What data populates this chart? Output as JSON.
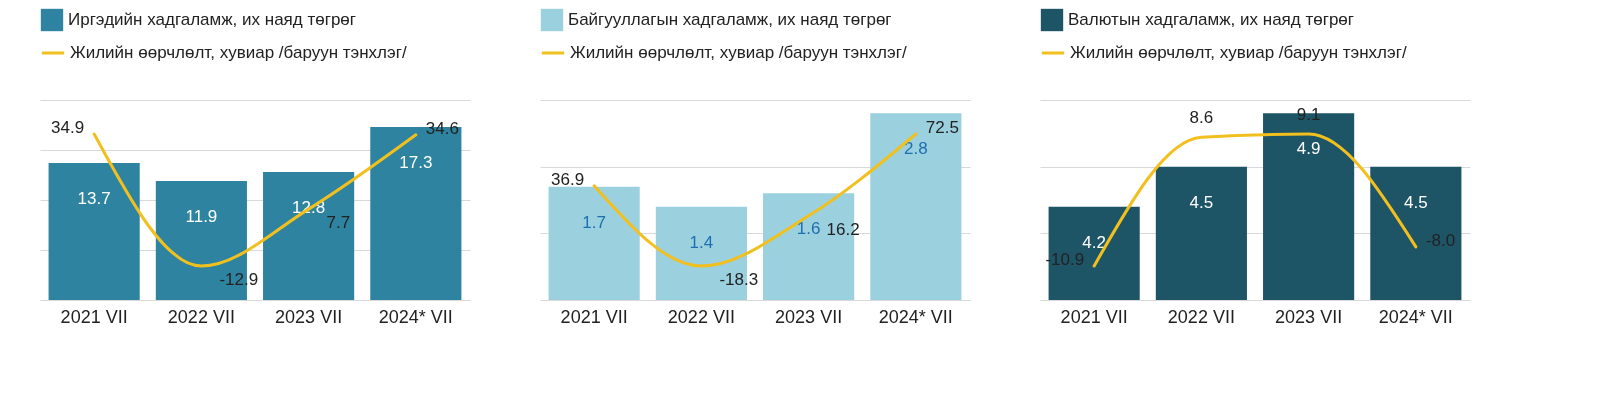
{
  "chart_data": [
    {
      "type": "bar",
      "categories": [
        "2021 VII",
        "2022 VII",
        "2023 VII",
        "2024* VII"
      ],
      "series": [
        {
          "name": "Иргэдийн хадгаламж, их наяд төгрөг",
          "color": "#2e84a0",
          "values": [
            13.7,
            11.9,
            12.8,
            17.3
          ]
        },
        {
          "name": "Жилийн өөрчлөлт, хувиар /баруун тэнхлэг/",
          "type": "line",
          "axis": "y2",
          "color": "#f2c01e",
          "values": [
            34.9,
            -12.9,
            7.7,
            34.6
          ]
        }
      ],
      "ylim": [
        0,
        20
      ],
      "yticks": [
        {
          "value": 0,
          "label": null
        },
        {
          "value": 5,
          "label": null
        },
        {
          "value": 10,
          "label": null
        },
        {
          "value": 15,
          "label": null
        },
        {
          "value": 20,
          "label": null
        }
      ],
      "grid": "y",
      "tick_labels": "x",
      "data_labels": true,
      "legend": "top"
    },
    {
      "type": "bar",
      "categories": [
        "2021 VII",
        "2022 VII",
        "2023 VII",
        "2024* VII"
      ],
      "series": [
        {
          "name": "Байгууллагын хадгаламж, их наяд төгрөг",
          "color": "#9bd0df",
          "values": [
            1.7,
            1.4,
            1.6,
            2.8
          ]
        },
        {
          "name": "Жилийн өөрчлөлт, хувиар /баруун тэнхлэг/",
          "type": "line",
          "axis": "y2",
          "color": "#f2c01e",
          "values": [
            36.9,
            -18.3,
            16.2,
            72.5
          ]
        }
      ],
      "ylim": [
        0,
        3
      ],
      "yticks": [
        {
          "value": 0,
          "label": null
        },
        {
          "value": 1,
          "label": null
        },
        {
          "value": 2,
          "label": null
        },
        {
          "value": 3,
          "label": null
        }
      ],
      "grid": "y",
      "tick_labels": "x",
      "data_labels": true,
      "legend": "top"
    },
    {
      "type": "bar",
      "categories": [
        "2021 VII",
        "2022 VII",
        "2023 VII",
        "2024* VII"
      ],
      "series": [
        {
          "name": "Валютын хадгаламж, их наяд төгрөг",
          "color": "#1d5566",
          "values": [
            4.2,
            4.5,
            4.9,
            4.5
          ]
        },
        {
          "name": "Жилийн өөрчлөлт, хувиар /баруун тэнхлэг/",
          "type": "line",
          "axis": "y2",
          "color": "#f2c01e",
          "values": [
            -10.9,
            8.6,
            9.1,
            -8.0
          ],
          "value_labels": [
            "-10.9",
            "8.6",
            "9.1",
            "-8.0"
          ]
        }
      ],
      "ylim": [
        3.5,
        5
      ],
      "yticks": [
        {
          "value": 3.5,
          "label": null
        },
        {
          "value": 4,
          "label": null
        },
        {
          "value": 4.5,
          "label": null
        },
        {
          "value": 5,
          "label": null
        }
      ],
      "grid": "y",
      "tick_labels": "x",
      "data_labels": true,
      "legend": "top"
    }
  ]
}
